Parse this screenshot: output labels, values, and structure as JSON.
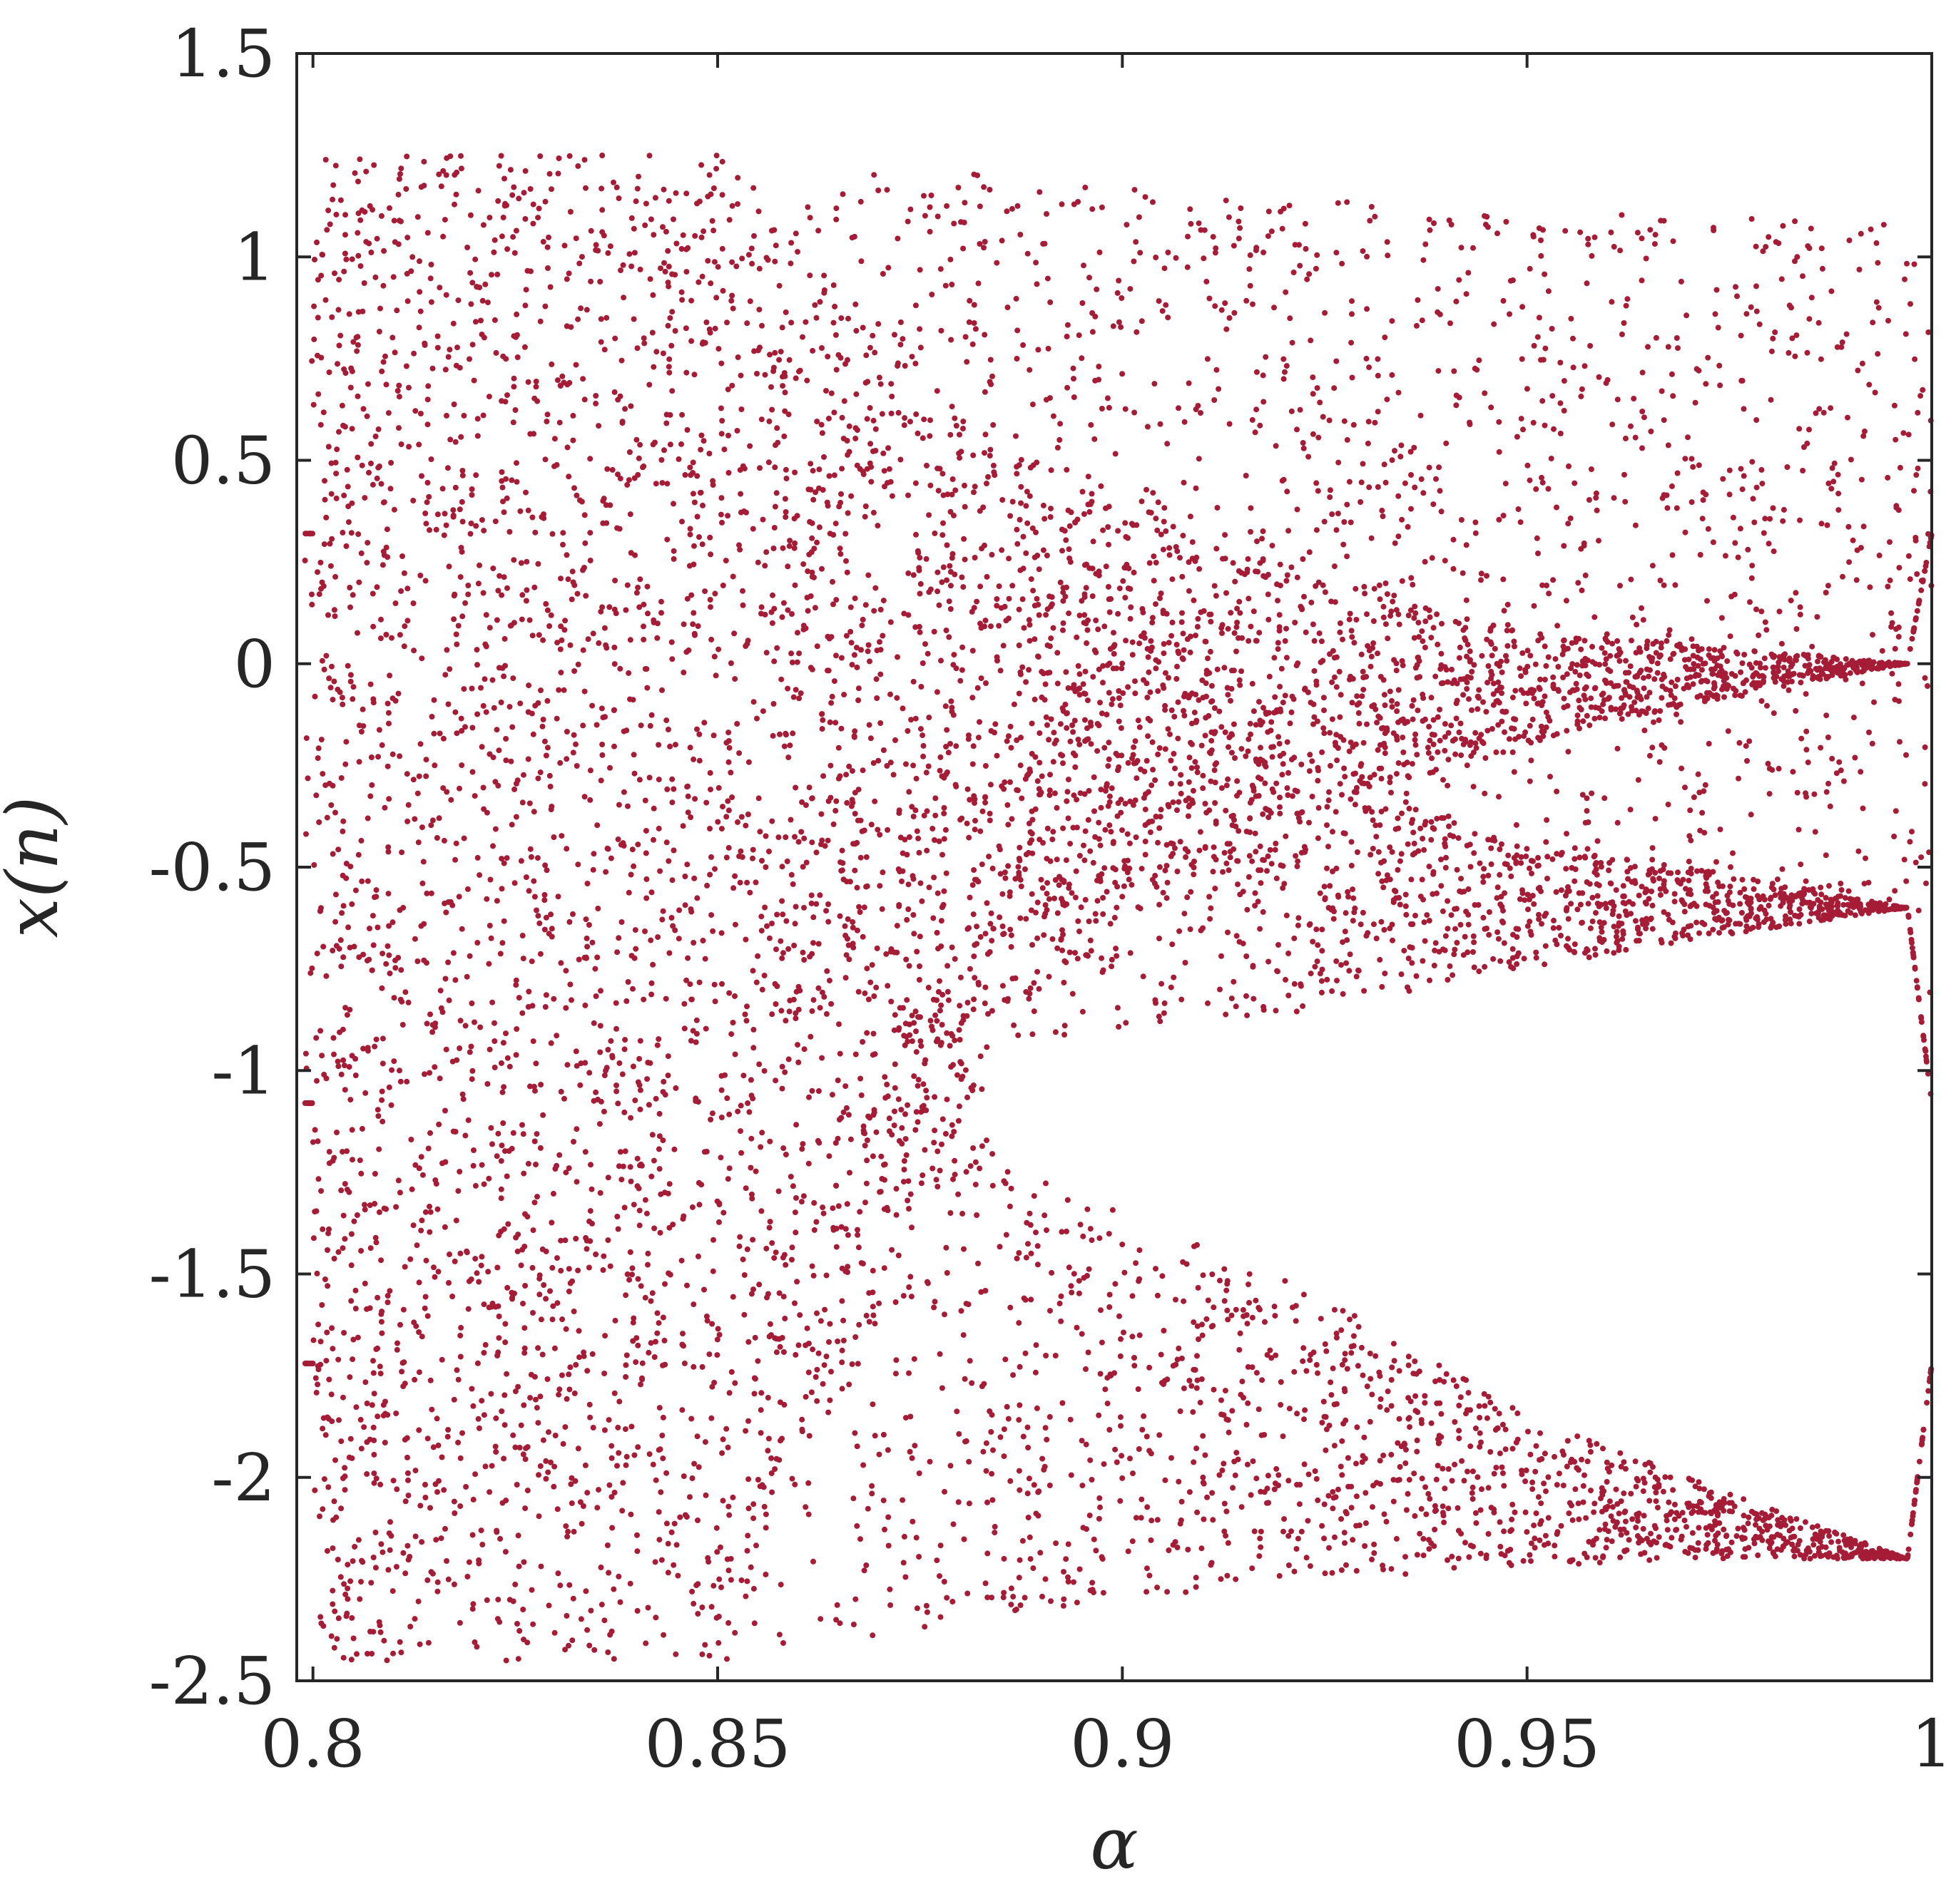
{
  "chart_data": {
    "type": "scatter",
    "title": "",
    "xlabel": "α",
    "ylabel": "x(n)",
    "xlim": [
      0.798,
      1.0
    ],
    "ylim": [
      -2.5,
      1.5
    ],
    "xticks": [
      0.8,
      0.85,
      0.9,
      0.95,
      1.0
    ],
    "xtick_labels": [
      "0.8",
      "0.85",
      "0.9",
      "0.95",
      "1"
    ],
    "yticks": [
      1.5,
      1.0,
      0.5,
      0.0,
      -0.5,
      -1.0,
      -1.5,
      -2.0,
      -2.5
    ],
    "ytick_labels": [
      "1.5",
      "1",
      "0.5",
      "0",
      "-0.5",
      "-1",
      "-1.5",
      "-2",
      "-2.5"
    ],
    "grid": false,
    "marker_color": "#A51C36",
    "series": [
      {
        "name": "",
        "envelope": {
          "alpha": [
            0.8,
            0.85,
            0.885,
            0.9,
            0.925,
            0.95,
            0.97,
            0.997,
            1.0
          ],
          "bands": [
            {
              "upper": [
                1.25,
                1.25,
                1.2,
                1.17,
                1.15,
                1.12,
                1.1,
                1.08,
                0.78
              ],
              "lower": [
                -2.45,
                -2.45,
                -0.7,
                -0.55,
                -0.48,
                -0.52,
                -0.56,
                -0.6,
                -1.08
              ]
            },
            {
              "upper": [
                1.25,
                1.25,
                0.53,
                0.4,
                0.2,
                0.08,
                0.05,
                0.0,
                0.32
              ],
              "lower": [
                -2.45,
                -2.45,
                -0.9,
                -0.6,
                -0.35,
                -0.2,
                -0.1,
                0.0,
                0.32
              ]
            },
            {
              "upper": [
                1.25,
                1.25,
                0.53,
                0.28,
                -0.25,
                -0.45,
                -0.5,
                -0.6,
                -1.08
              ],
              "lower": [
                -2.45,
                -2.45,
                -0.95,
                -0.9,
                -0.85,
                -0.75,
                -0.68,
                -0.6,
                -1.08
              ]
            },
            {
              "upper": [
                1.25,
                1.25,
                -1.2,
                -1.35,
                -1.55,
                -1.85,
                -2.0,
                -2.2,
                -1.72
              ],
              "lower": [
                -2.45,
                -2.45,
                -2.35,
                -2.3,
                -2.25,
                -2.22,
                -2.2,
                -2.2,
                -1.72
              ]
            }
          ]
        }
      }
    ]
  }
}
